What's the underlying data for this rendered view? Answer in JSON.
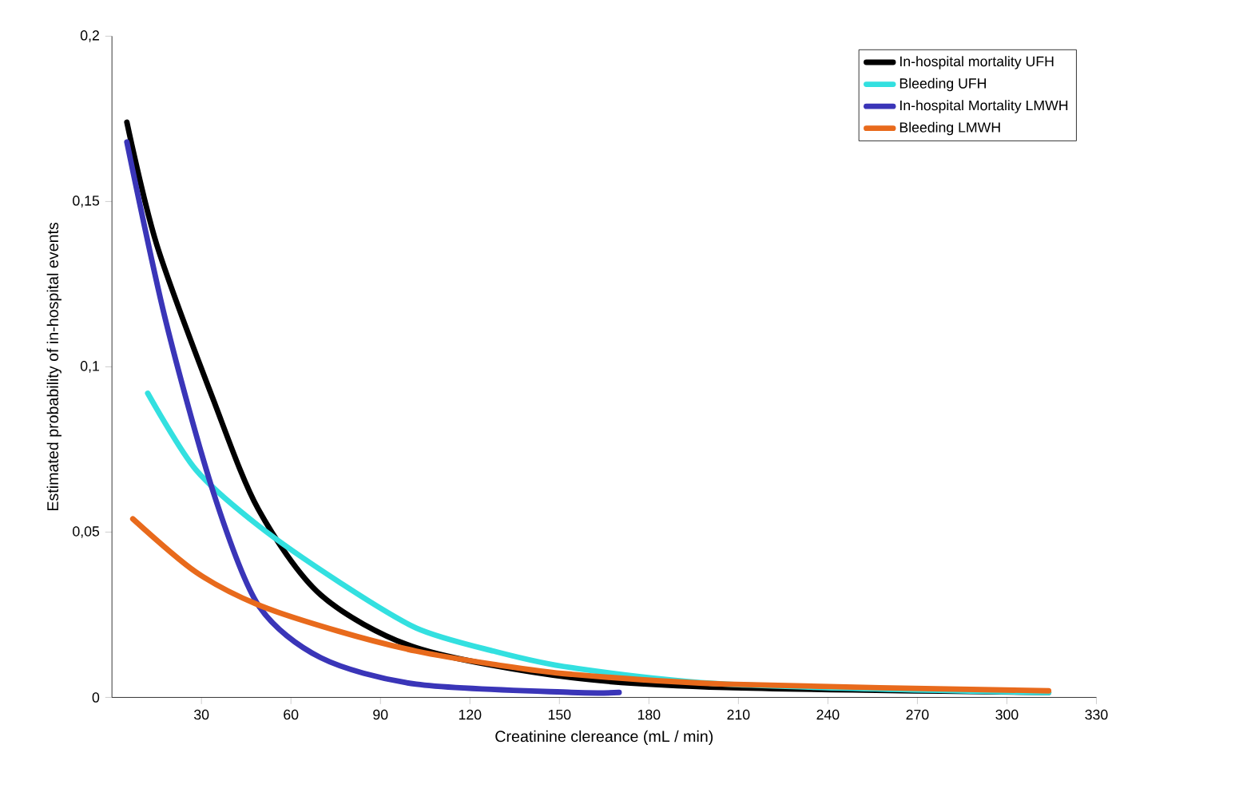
{
  "chart_data": {
    "type": "line",
    "xlabel": "Creatinine clereance (mL / min)",
    "ylabel": "Estimated probability of in-hospital events",
    "xlim": [
      0,
      330
    ],
    "xticks": [
      30,
      60,
      90,
      120,
      150,
      180,
      210,
      240,
      270,
      300,
      330
    ],
    "ylim": [
      0,
      0.2
    ],
    "yticks": [
      {
        "value": 0,
        "label": "0"
      },
      {
        "value": 0.05,
        "label": "0,05"
      },
      {
        "value": 0.1,
        "label": "0,1"
      },
      {
        "value": 0.15,
        "label": "0,15"
      },
      {
        "value": 0.2,
        "label": "0,2"
      }
    ],
    "legend": "top right",
    "grid": false,
    "line_style": "solid",
    "series": [
      {
        "name": "In-hospital  mortality UFH",
        "color": "#000000",
        "x": [
          5,
          15,
          34,
          49,
          70,
          102,
          154,
          206,
          314
        ],
        "values": [
          0.174,
          0.137,
          0.09,
          0.057,
          0.031,
          0.015,
          0.006,
          0.003,
          0.0015
        ]
      },
      {
        "name": "Bleeding UFH",
        "color": "#33e0e0",
        "x": [
          12,
          28,
          49,
          76,
          102,
          128,
          154,
          206,
          314
        ],
        "values": [
          0.092,
          0.069,
          0.052,
          0.035,
          0.021,
          0.014,
          0.009,
          0.004,
          0.0015
        ]
      },
      {
        "name": "In-hospital Mortality LMWH",
        "color": "#3a35b8",
        "x": [
          5,
          18,
          34,
          49,
          70,
          102,
          154,
          170
        ],
        "values": [
          0.168,
          0.114,
          0.062,
          0.028,
          0.012,
          0.004,
          0.0015,
          0.0015
        ]
      },
      {
        "name": "Bleeding LMWH",
        "color": "#e86a1c",
        "x": [
          7,
          28,
          49,
          76,
          102,
          128,
          154,
          206,
          314
        ],
        "values": [
          0.054,
          0.038,
          0.028,
          0.02,
          0.014,
          0.01,
          0.007,
          0.004,
          0.002
        ]
      }
    ]
  }
}
